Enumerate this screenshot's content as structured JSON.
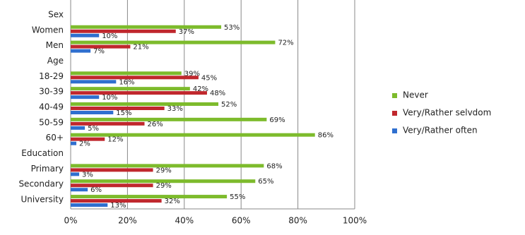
{
  "chart_data": {
    "type": "bar",
    "orientation": "horizontal",
    "categories": [
      "Sex",
      "Women",
      "Men",
      "Age",
      "18-29",
      "30-39",
      "40-49",
      "50-59",
      "60+",
      "Education",
      "Primary",
      "Secondary",
      "University"
    ],
    "series": [
      {
        "name": "Never",
        "color": "#7dbb2c",
        "values": [
          null,
          53,
          72,
          null,
          39,
          42,
          52,
          69,
          86,
          null,
          68,
          65,
          55
        ],
        "value_labels": [
          null,
          "53%",
          "72%",
          null,
          "39%",
          "42%",
          "52%",
          "69%",
          "86%",
          null,
          "68%",
          "65%",
          "55%"
        ]
      },
      {
        "name": "Very/Rather selvdom",
        "color": "#c0272d",
        "values": [
          null,
          37,
          21,
          null,
          45,
          48,
          33,
          26,
          12,
          null,
          29,
          29,
          32
        ],
        "value_labels": [
          null,
          "37%",
          "21%",
          null,
          "45%",
          "48%",
          "33%",
          "26%",
          "12%",
          null,
          "29%",
          "29%",
          "32%"
        ]
      },
      {
        "name": "Very/Rather often",
        "color": "#2f6fcf",
        "values": [
          null,
          10,
          7,
          null,
          16,
          10,
          15,
          5,
          2,
          null,
          3,
          6,
          13
        ],
        "value_labels": [
          null,
          "10%",
          "7%",
          null,
          "16%",
          "10%",
          "15%",
          "5%",
          "2%",
          null,
          "3%",
          "6%",
          "13%"
        ]
      }
    ],
    "xlim": [
      0,
      100
    ],
    "xticks": [
      {
        "value": 0,
        "label": "0%"
      },
      {
        "value": 20,
        "label": "20%"
      },
      {
        "value": 40,
        "label": "40%"
      },
      {
        "value": 60,
        "label": "60%"
      },
      {
        "value": 80,
        "label": "80%"
      },
      {
        "value": 100,
        "label": "100%"
      }
    ],
    "grid": true,
    "legend": "right"
  }
}
